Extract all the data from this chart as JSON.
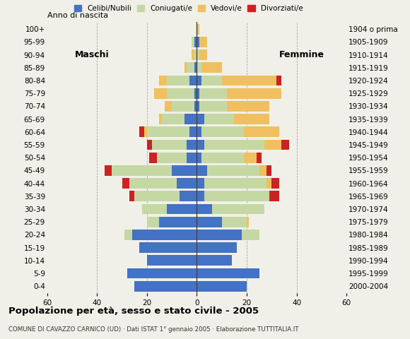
{
  "age_groups": [
    "0-4",
    "5-9",
    "10-14",
    "15-19",
    "20-24",
    "25-29",
    "30-34",
    "35-39",
    "40-44",
    "45-49",
    "50-54",
    "55-59",
    "60-64",
    "65-69",
    "70-74",
    "75-79",
    "80-84",
    "85-89",
    "90-94",
    "95-99",
    "100+"
  ],
  "birth_years": [
    "2000-2004",
    "1995-1999",
    "1990-1994",
    "1985-1989",
    "1980-1984",
    "1975-1979",
    "1970-1974",
    "1965-1969",
    "1960-1964",
    "1955-1959",
    "1950-1954",
    "1945-1949",
    "1940-1944",
    "1935-1939",
    "1930-1934",
    "1925-1929",
    "1920-1924",
    "1915-1919",
    "1910-1914",
    "1905-1909",
    "1904 o prima"
  ],
  "male_celibe": [
    25,
    28,
    20,
    23,
    26,
    15,
    12,
    7,
    8,
    10,
    4,
    4,
    3,
    5,
    1,
    1,
    3,
    1,
    0,
    1,
    0
  ],
  "male_coniugato": [
    0,
    0,
    0,
    0,
    3,
    5,
    10,
    18,
    19,
    24,
    12,
    14,
    17,
    9,
    9,
    11,
    9,
    3,
    1,
    1,
    0
  ],
  "male_vedovo": [
    0,
    0,
    0,
    0,
    0,
    0,
    0,
    0,
    0,
    0,
    0,
    0,
    1,
    1,
    3,
    5,
    3,
    1,
    1,
    0,
    0
  ],
  "male_divorziato": [
    0,
    0,
    0,
    0,
    0,
    0,
    0,
    2,
    3,
    3,
    3,
    2,
    2,
    0,
    0,
    0,
    0,
    0,
    0,
    0,
    0
  ],
  "female_celibe": [
    20,
    25,
    14,
    16,
    18,
    10,
    6,
    3,
    3,
    4,
    2,
    3,
    2,
    3,
    1,
    1,
    2,
    0,
    0,
    1,
    0
  ],
  "female_coniugato": [
    0,
    0,
    0,
    0,
    7,
    10,
    21,
    26,
    25,
    21,
    17,
    24,
    17,
    12,
    11,
    11,
    8,
    2,
    1,
    0,
    0
  ],
  "female_vedovo": [
    0,
    0,
    0,
    0,
    0,
    1,
    0,
    0,
    2,
    3,
    5,
    7,
    14,
    14,
    17,
    22,
    22,
    8,
    3,
    3,
    1
  ],
  "female_divorziato": [
    0,
    0,
    0,
    0,
    0,
    0,
    0,
    4,
    3,
    2,
    2,
    3,
    0,
    0,
    0,
    0,
    2,
    0,
    0,
    0,
    0
  ],
  "colors": {
    "celibe": "#4472c4",
    "coniugato": "#c5d8a4",
    "vedovo": "#f0c060",
    "divorziato": "#cc2222"
  },
  "title": "Popolazione per età, sesso e stato civile - 2005",
  "subtitle": "COMUNE DI CAVAZZO CARNICO (UD) · Dati ISTAT 1° gennaio 2005 · Elaborazione TUTTITALIA.IT",
  "xlim": 60,
  "background_color": "#f0f0e8"
}
